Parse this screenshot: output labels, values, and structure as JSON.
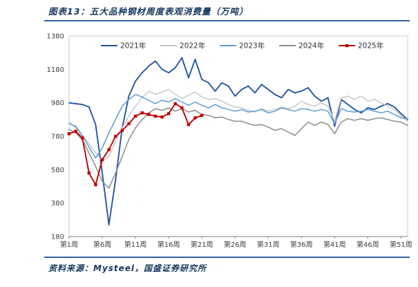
{
  "header": {
    "title": "图表13：五大品种钢材周度表观消费量（万吨）"
  },
  "footer": {
    "source": "资料来源：Mysteel，国盛证券研究所"
  },
  "colors": {
    "accent_rule": "#2F5FA5",
    "title_text": "#17375E",
    "axis_text": "#404040",
    "plot_border": "#C8C8C8"
  },
  "chart_data": {
    "type": "line",
    "title": "五大品种钢材周度表观消费量（万吨）",
    "figure_label": "图表13",
    "xlabel": "",
    "ylabel": "",
    "ylim": [
      180,
      1380
    ],
    "y_ticks": [
      180,
      380,
      580,
      780,
      980,
      1180,
      1380
    ],
    "weeks_total": 52,
    "x_tick_weeks": [
      1,
      6,
      11,
      16,
      21,
      26,
      31,
      36,
      41,
      46,
      51
    ],
    "x_tick_labels": [
      "第1周",
      "第6周",
      "第11周",
      "第16周",
      "第21周",
      "第26周",
      "第31周",
      "第36周",
      "第41周",
      "第46周",
      "第51周"
    ],
    "grid": false,
    "legend_position": "top",
    "series": [
      {
        "name": "2021年",
        "color": "#2155A3",
        "marker": "none",
        "line_width": 1.9,
        "values": [
          980,
          975,
          970,
          955,
          850,
          560,
          250,
          520,
          830,
          1020,
          1110,
          1160,
          1200,
          1230,
          1180,
          1160,
          1190,
          1250,
          1130,
          1240,
          1120,
          1100,
          1050,
          1100,
          1080,
          1020,
          1060,
          1080,
          1040,
          1090,
          1060,
          1030,
          1010,
          1060,
          1040,
          1050,
          1070,
          1020,
          990,
          1010,
          840,
          1000,
          970,
          940,
          920,
          950,
          940,
          960,
          975,
          955,
          915,
          880
        ]
      },
      {
        "name": "2022年",
        "color": "#C9C9C9",
        "marker": "none",
        "line_width": 1.5,
        "values": [
          865,
          830,
          785,
          735,
          680,
          630,
          660,
          750,
          830,
          900,
          960,
          1010,
          1050,
          1030,
          1045,
          1060,
          1030,
          1005,
          1025,
          1045,
          1015,
          1000,
          1005,
          990,
          970,
          955,
          950,
          935,
          925,
          945,
          930,
          940,
          955,
          945,
          960,
          990,
          970,
          960,
          980,
          960,
          870,
          1010,
          1020,
          1000,
          1020,
          990,
          1000,
          980,
          960,
          940,
          900,
          870
        ]
      },
      {
        "name": "2023年",
        "color": "#5B9BD5",
        "marker": "none",
        "line_width": 1.5,
        "values": [
          855,
          840,
          785,
          715,
          650,
          710,
          800,
          880,
          960,
          1000,
          1030,
          1015,
          995,
          975,
          995,
          985,
          1005,
          985,
          965,
          985,
          965,
          950,
          970,
          950,
          940,
          930,
          940,
          925,
          930,
          940,
          920,
          930,
          950,
          940,
          930,
          945,
          940,
          930,
          940,
          930,
          855,
          945,
          930,
          925,
          930,
          940,
          930,
          920,
          930,
          910,
          890,
          885
        ]
      },
      {
        "name": "2024年",
        "color": "#8C8C8C",
        "marker": "none",
        "line_width": 1.5,
        "values": [
          820,
          800,
          760,
          680,
          600,
          510,
          470,
          560,
          660,
          760,
          830,
          880,
          920,
          945,
          935,
          950,
          930,
          945,
          925,
          935,
          910,
          905,
          890,
          895,
          880,
          870,
          870,
          855,
          845,
          850,
          835,
          815,
          825,
          805,
          785,
          825,
          865,
          845,
          865,
          850,
          795,
          865,
          885,
          875,
          885,
          875,
          885,
          890,
          880,
          870,
          865,
          845
        ]
      },
      {
        "name": "2025年",
        "color": "#C00000",
        "marker": "square",
        "line_width": 1.9,
        "values": [
          795,
          810,
          770,
          560,
          490,
          640,
          700,
          780,
          815,
          855,
          900,
          920,
          910,
          900,
          895,
          915,
          975,
          950,
          850,
          890,
          905
        ]
      }
    ]
  }
}
